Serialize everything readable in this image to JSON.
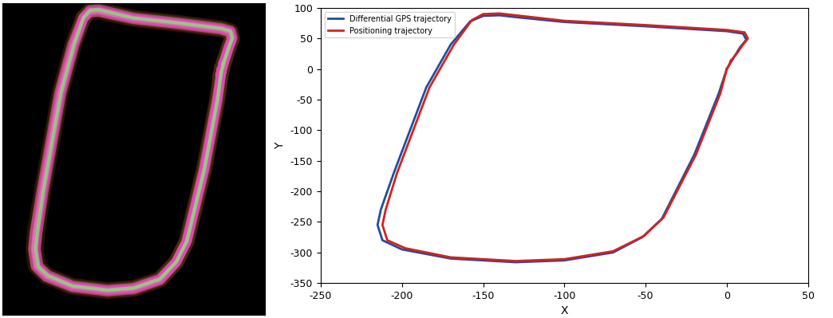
{
  "chart_data": {
    "type": "line",
    "x_label": "X",
    "y_label": "Y",
    "xlim": [
      -250,
      50
    ],
    "xticks": [
      -250,
      -200,
      -150,
      -100,
      -50,
      0,
      50
    ],
    "ylim": [
      -350,
      100
    ],
    "yticks": [
      -350,
      -300,
      -250,
      -200,
      -150,
      -100,
      -50,
      0,
      50,
      100
    ],
    "legend": "upper left",
    "series": [
      {
        "name": "Differential GPS trajectory",
        "color": "#1f4e9c",
        "line_style": "solid",
        "x": [
          0,
          8,
          12,
          10,
          0,
          -50,
          -100,
          -130,
          -140,
          -150,
          -158,
          -170,
          -185,
          -195,
          -205,
          -213,
          -215,
          -212,
          -200,
          -170,
          -130,
          -100,
          -70,
          -52,
          -40,
          -20,
          -5,
          0
        ],
        "values": [
          0,
          35,
          48,
          58,
          62,
          70,
          77,
          85,
          88,
          87,
          78,
          40,
          -30,
          -100,
          -170,
          -230,
          -255,
          -280,
          -295,
          -310,
          -316,
          -313,
          -300,
          -275,
          -245,
          -140,
          -40,
          0
        ]
      },
      {
        "name": "Positioning trajectory",
        "color": "#d62020",
        "line_style": "solid",
        "x": [
          0,
          3,
          2,
          6,
          10,
          13,
          11,
          0,
          -50,
          -100,
          -130,
          -140,
          -150,
          -157,
          -168,
          -183,
          -193,
          -203,
          -210,
          -212,
          -209,
          -198,
          -170,
          -130,
          -100,
          -70,
          -51,
          -39,
          -19,
          -4,
          0
        ],
        "values": [
          0,
          15,
          12,
          25,
          40,
          50,
          60,
          64,
          72,
          79,
          88,
          91,
          90,
          80,
          40,
          -30,
          -100,
          -170,
          -230,
          -255,
          -280,
          -293,
          -308,
          -314,
          -311,
          -298,
          -273,
          -243,
          -140,
          -40,
          0
        ]
      }
    ]
  }
}
